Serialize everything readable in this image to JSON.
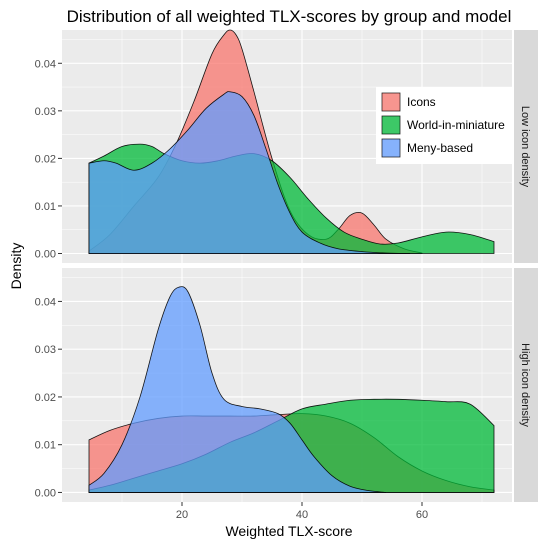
{
  "chart_data": {
    "type": "area",
    "title": "Distribution of all weighted TLX-scores by group and model",
    "xlabel": "Weighted TLX-score",
    "ylabel": "Density",
    "xlim": [
      0,
      75
    ],
    "ylim": [
      -0.002,
      0.047
    ],
    "x_ticks": [
      20,
      40,
      60
    ],
    "y_ticks": [
      0.0,
      0.01,
      0.02,
      0.03,
      0.04
    ],
    "y_tick_labels": [
      "0.00",
      "0.01",
      "0.02",
      "0.03",
      "0.04"
    ],
    "grid": true,
    "legend_position": "top-right of top panel",
    "series_styles": [
      {
        "name": "Icons",
        "color": "#F8766D"
      },
      {
        "name": "World-in-miniature",
        "color": "#00BA38"
      },
      {
        "name": "Meny-based",
        "color": "#619CFF"
      }
    ],
    "panels": [
      {
        "strip_label": "Low icon density",
        "series": [
          {
            "name": "Icons",
            "x": [
              4.5,
              8,
              12,
              16,
              19,
              22,
              25,
              27,
              28,
              29,
              30,
              32,
              35,
              38,
              41,
              44,
              46,
              48,
              50,
              52,
              54,
              57,
              60
            ],
            "y": [
              0.0005,
              0.004,
              0.01,
              0.016,
              0.023,
              0.032,
              0.042,
              0.046,
              0.047,
              0.046,
              0.043,
              0.034,
              0.02,
              0.009,
              0.004,
              0.003,
              0.005,
              0.008,
              0.0085,
              0.006,
              0.003,
              0.001,
              0.0001
            ]
          },
          {
            "name": "World-in-miniature",
            "x": [
              4.5,
              7,
              10,
              13,
              15,
              17,
              20,
              23,
              26,
              29,
              32,
              35,
              38,
              41,
              44,
              47,
              50,
              53,
              56,
              60,
              64,
              68,
              72
            ],
            "y": [
              0.019,
              0.0205,
              0.0225,
              0.023,
              0.0225,
              0.021,
              0.0195,
              0.019,
              0.0195,
              0.0205,
              0.021,
              0.0195,
              0.016,
              0.0115,
              0.0075,
              0.0045,
              0.003,
              0.002,
              0.0022,
              0.0035,
              0.0045,
              0.004,
              0.0025
            ]
          },
          {
            "name": "Meny-based",
            "x": [
              4.5,
              7,
              9,
              12,
              15,
              18,
              21,
              24,
              27,
              28,
              30,
              32,
              34,
              36,
              38,
              40,
              43,
              46,
              50,
              54,
              58
            ],
            "y": [
              0.019,
              0.0195,
              0.019,
              0.0175,
              0.019,
              0.022,
              0.026,
              0.0305,
              0.0335,
              0.034,
              0.033,
              0.029,
              0.022,
              0.0145,
              0.0085,
              0.0045,
              0.0022,
              0.001,
              0.0004,
              0.0001,
              0.0
            ]
          }
        ]
      },
      {
        "strip_label": "High icon density",
        "series": [
          {
            "name": "Icons",
            "x": [
              4.5,
              8,
              12,
              16,
              20,
              24,
              28,
              32,
              36,
              40,
              44,
              48,
              52,
              56,
              60,
              64,
              68,
              72
            ],
            "y": [
              0.011,
              0.013,
              0.0145,
              0.0155,
              0.016,
              0.016,
              0.016,
              0.016,
              0.0163,
              0.0165,
              0.016,
              0.0145,
              0.0115,
              0.0075,
              0.0045,
              0.0025,
              0.0012,
              0.0005
            ]
          },
          {
            "name": "World-in-miniature",
            "x": [
              4.5,
              8,
              12,
              16,
              20,
              24,
              28,
              32,
              36,
              40,
              44,
              48,
              52,
              56,
              60,
              64,
              68,
              72
            ],
            "y": [
              0.0005,
              0.0015,
              0.003,
              0.0045,
              0.006,
              0.008,
              0.0105,
              0.0125,
              0.015,
              0.0175,
              0.0185,
              0.0193,
              0.0195,
              0.0195,
              0.0193,
              0.019,
              0.0185,
              0.014
            ]
          },
          {
            "name": "Meny-based",
            "x": [
              4.5,
              7,
              10,
              13,
              16,
              18,
              19.5,
              21,
              23,
              25,
              27,
              30,
              33,
              36,
              38,
              40,
              42,
              45,
              48,
              51,
              54
            ],
            "y": [
              0.0015,
              0.004,
              0.01,
              0.02,
              0.034,
              0.041,
              0.043,
              0.042,
              0.035,
              0.025,
              0.0195,
              0.018,
              0.0175,
              0.0165,
              0.0145,
              0.011,
              0.0075,
              0.0035,
              0.0013,
              0.0004,
              0.0
            ]
          }
        ]
      }
    ]
  }
}
